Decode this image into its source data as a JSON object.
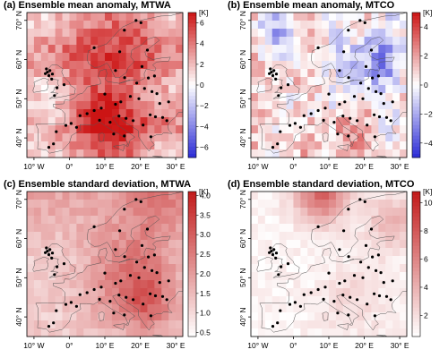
{
  "figure": {
    "panels": [
      {
        "id": "a",
        "title": "(a) Ensemble mean anomaly, MTWA",
        "colorbar": {
          "unit": "[K]",
          "ticks": [
            "6",
            "4",
            "2",
            "0",
            "−2",
            "−4",
            "−6"
          ],
          "tick_values": [
            6,
            4,
            2,
            0,
            -2,
            -4,
            -6
          ],
          "range": [
            -7,
            7
          ],
          "scheme": "diverging-blue-white-red",
          "low_color": "#2b2bd6",
          "mid_color": "#ffffff",
          "high_color": "#cc1414"
        }
      },
      {
        "id": "b",
        "title": "(b) Ensemble mean anomaly, MTCO",
        "colorbar": {
          "unit": "[K]",
          "ticks": [
            "4",
            "2",
            "0",
            "−2",
            "−4"
          ],
          "tick_values": [
            4,
            2,
            0,
            -2,
            -4
          ],
          "range": [
            -5,
            5
          ],
          "scheme": "diverging-blue-white-red",
          "low_color": "#2b2bd6",
          "mid_color": "#ffffff",
          "high_color": "#cc1414"
        }
      },
      {
        "id": "c",
        "title": "(c) Ensemble standard deviation, MTWA",
        "colorbar": {
          "unit": "[K]",
          "ticks": [
            "4.0",
            "3.5",
            "3.0",
            "2.5",
            "2.0",
            "1.5",
            "1.0",
            "0.5"
          ],
          "tick_values": [
            4.0,
            3.5,
            3.0,
            2.5,
            2.0,
            1.5,
            1.0,
            0.5
          ],
          "range": [
            0.4,
            4.1
          ],
          "scheme": "sequential-white-red",
          "low_color": "#ffffff",
          "high_color": "#c21a1a"
        }
      },
      {
        "id": "d",
        "title": "(d) Ensemble standard deviation, MTCO",
        "colorbar": {
          "unit": "[K]",
          "ticks": [
            "10",
            "8",
            "6",
            "4",
            "2"
          ],
          "tick_values": [
            10,
            8,
            6,
            4,
            2
          ],
          "range": [
            0.5,
            10.8
          ],
          "scheme": "sequential-white-red",
          "low_color": "#ffffff",
          "high_color": "#c21a1a"
        }
      }
    ],
    "lon_ticks": [
      "10° W",
      "0°",
      "10° E",
      "20° E",
      "30° E"
    ],
    "lon_values": [
      -10,
      0,
      10,
      20,
      30
    ],
    "lat_ticks": [
      "70° N",
      "60° N",
      "50° N",
      "40° N"
    ],
    "lat_values": [
      70,
      60,
      50,
      40
    ],
    "extent": {
      "lon": [
        -12,
        32
      ],
      "lat": [
        35,
        72
      ]
    },
    "sites": [
      [
        -5.5,
        57.2
      ],
      [
        -6.2,
        56.8
      ],
      [
        -6.8,
        56.4
      ],
      [
        -5.8,
        55.9
      ],
      [
        -4.8,
        56.3
      ],
      [
        -6.5,
        57.6
      ],
      [
        -5.0,
        55.0
      ],
      [
        -3.5,
        52.8
      ],
      [
        -4.2,
        50.8
      ],
      [
        -1.5,
        53.6
      ],
      [
        7.0,
        63.0
      ],
      [
        15.5,
        67.5
      ],
      [
        18.8,
        70.0
      ],
      [
        20.2,
        69.4
      ],
      [
        14.2,
        62.0
      ],
      [
        22.0,
        62.4
      ],
      [
        20.5,
        58.2
      ],
      [
        13.0,
        57.2
      ],
      [
        15.6,
        55.4
      ],
      [
        22.3,
        55.3
      ],
      [
        24.0,
        55.8
      ],
      [
        19.0,
        54.0
      ],
      [
        21.2,
        52.6
      ],
      [
        23.3,
        51.8
      ],
      [
        24.7,
        51.3
      ],
      [
        17.2,
        50.6
      ],
      [
        19.6,
        50.0
      ],
      [
        14.5,
        49.2
      ],
      [
        10.0,
        51.2
      ],
      [
        13.0,
        48.6
      ],
      [
        9.0,
        47.6
      ],
      [
        7.0,
        47.0
      ],
      [
        5.0,
        46.2
      ],
      [
        3.0,
        45.7
      ],
      [
        0.5,
        43.7
      ],
      [
        -1.0,
        43.2
      ],
      [
        -3.7,
        41.6
      ],
      [
        -4.5,
        38.5
      ],
      [
        -5.8,
        37.6
      ],
      [
        2.0,
        42.7
      ],
      [
        8.5,
        44.5
      ],
      [
        11.5,
        44.0
      ],
      [
        14.0,
        45.6
      ],
      [
        16.0,
        45.0
      ],
      [
        18.0,
        44.4
      ],
      [
        20.8,
        43.3
      ],
      [
        22.8,
        45.9
      ],
      [
        24.3,
        45.4
      ],
      [
        26.3,
        45.2
      ],
      [
        27.5,
        44.4
      ],
      [
        12.5,
        41.0
      ],
      [
        15.5,
        40.5
      ],
      [
        23.0,
        40.3
      ],
      [
        25.5,
        48.8
      ],
      [
        28.0,
        49.2
      ]
    ]
  }
}
